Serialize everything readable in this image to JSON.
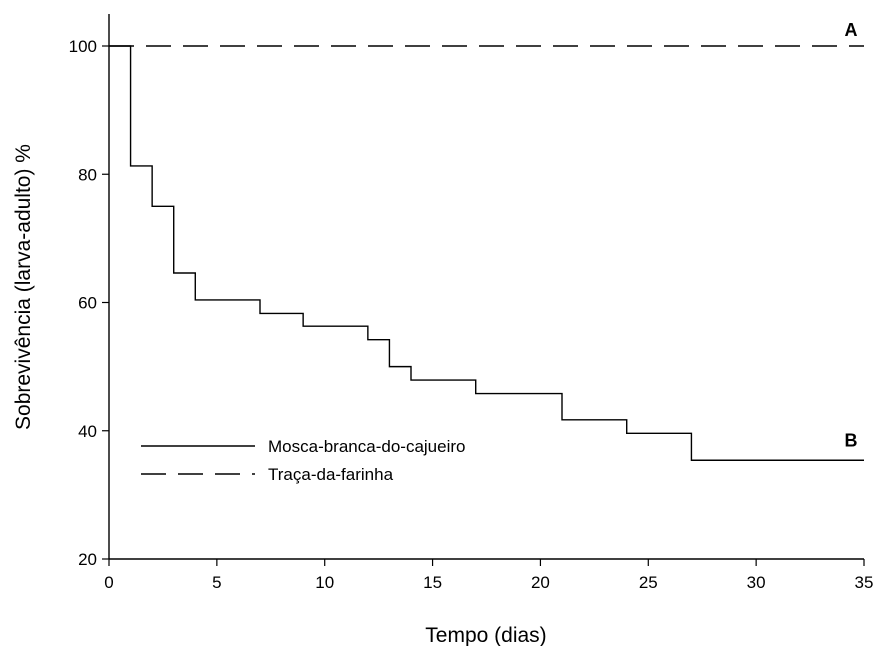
{
  "chart_data": {
    "type": "line",
    "step": true,
    "title": "",
    "xlabel": "Tempo (dias)",
    "ylabel": "Sobrevivência (larva-adulto) %",
    "xlim": [
      0,
      35
    ],
    "ylim": [
      20,
      105
    ],
    "x_ticks": [
      0,
      5,
      10,
      15,
      20,
      25,
      30,
      35
    ],
    "y_ticks": [
      20,
      40,
      60,
      80,
      100
    ],
    "grid": false,
    "legend_position": "lower-left",
    "series": [
      {
        "name": "Mosca-branca-do-cajueiro",
        "line_style": "solid",
        "x": [
          0,
          1,
          2,
          3,
          4,
          7,
          9,
          12,
          13,
          14,
          17,
          21,
          24,
          27,
          35
        ],
        "y": [
          100,
          81.3,
          75.0,
          64.6,
          60.4,
          58.3,
          56.3,
          54.2,
          50.0,
          47.9,
          45.8,
          41.7,
          39.6,
          35.4,
          35.4
        ]
      },
      {
        "name": "Traça-da-farinha",
        "line_style": "dashed",
        "x": [
          0,
          35
        ],
        "y": [
          100,
          100
        ]
      }
    ],
    "annotations": [
      {
        "text": "A",
        "x": 34.4,
        "y": 102.5
      },
      {
        "text": "B",
        "x": 34.4,
        "y": 38.5
      }
    ]
  }
}
